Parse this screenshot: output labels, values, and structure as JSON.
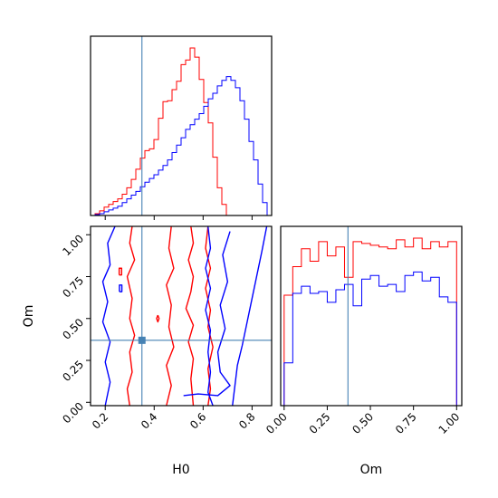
{
  "colors": {
    "series_a": "#ff0000",
    "series_b": "#0000ff",
    "truth": "#4682b4"
  },
  "chart_data": {
    "type": "corner",
    "parameters": [
      "H0",
      "Om"
    ],
    "truth": {
      "H0": 0.35,
      "Om": 0.37
    },
    "panels": [
      {
        "id": "hist-H0",
        "type": "histogram",
        "xlabel": "",
        "xlim": [
          0.14,
          0.88
        ],
        "bin_edges": [
          0.14,
          0.1585,
          0.177,
          0.1955,
          0.214,
          0.2325,
          0.251,
          0.2695,
          0.288,
          0.3065,
          0.325,
          0.3435,
          0.362,
          0.3805,
          0.399,
          0.4175,
          0.436,
          0.4545,
          0.473,
          0.4915,
          0.51,
          0.5285,
          0.547,
          0.5655,
          0.584,
          0.6025,
          0.621,
          0.6395,
          0.658,
          0.6765,
          0.695,
          0.7135,
          0.732,
          0.7505,
          0.769,
          0.7875,
          0.806,
          0.8245,
          0.843,
          0.8615,
          0.88
        ],
        "series": [
          {
            "color_key": "series_a",
            "counts": [
              0,
              2,
              5,
              9,
              12,
              15,
              18,
              23,
              30,
              39,
              50,
              62,
              70,
              72,
              82,
              105,
              123,
              124,
              136,
              145,
              163,
              168,
              181,
              171,
              147,
              122,
              100,
              63,
              30,
              12,
              0,
              0,
              0,
              0,
              0,
              0,
              0,
              0,
              0,
              0
            ]
          },
          {
            "color_key": "series_b",
            "counts": [
              0,
              1,
              2,
              4,
              6,
              8,
              10,
              14,
              18,
              22,
              26,
              31,
              36,
              40,
              44,
              49,
              54,
              60,
              68,
              76,
              84,
              93,
              98,
              104,
              110,
              118,
              126,
              132,
              140,
              146,
              150,
              146,
              138,
              124,
              104,
              80,
              60,
              34,
              14,
              0
            ]
          }
        ]
      },
      {
        "id": "scatter-H0-Om",
        "type": "contour",
        "xlabel": "H0",
        "ylabel": "Om",
        "xlim": [
          0.14,
          0.88
        ],
        "ylim": [
          -0.02,
          1.05
        ],
        "xticks": [
          0.2,
          0.4,
          0.6,
          0.8
        ],
        "xtick_labels": [
          "0.2",
          "0.4",
          "0.6",
          "0.8"
        ],
        "yticks": [
          0.0,
          0.25,
          0.5,
          0.75,
          1.0
        ],
        "ytick_labels": [
          "0.00",
          "0.25",
          "0.50",
          "0.75",
          "1.00"
        ],
        "series": [
          {
            "color_key": "series_a",
            "contours": [
              [
                [
                  0.31,
                  1.05
                ],
                [
                  0.3,
                  0.95
                ],
                [
                  0.32,
                  0.85
                ],
                [
                  0.29,
                  0.75
                ],
                [
                  0.31,
                  0.62
                ],
                [
                  0.3,
                  0.5
                ],
                [
                  0.32,
                  0.4
                ],
                [
                  0.3,
                  0.3
                ],
                [
                  0.31,
                  0.18
                ],
                [
                  0.29,
                  0.08
                ],
                [
                  0.3,
                  -0.02
                ]
              ],
              [
                [
                  0.47,
                  1.05
                ],
                [
                  0.46,
                  0.92
                ],
                [
                  0.48,
                  0.8
                ],
                [
                  0.45,
                  0.7
                ],
                [
                  0.47,
                  0.58
                ],
                [
                  0.46,
                  0.45
                ],
                [
                  0.48,
                  0.33
                ],
                [
                  0.45,
                  0.22
                ],
                [
                  0.47,
                  0.1
                ],
                [
                  0.45,
                  -0.02
                ]
              ],
              [
                [
                  0.55,
                  1.05
                ],
                [
                  0.56,
                  0.95
                ],
                [
                  0.54,
                  0.85
                ],
                [
                  0.56,
                  0.75
                ],
                [
                  0.55,
                  0.66
                ],
                [
                  0.53,
                  0.56
                ],
                [
                  0.56,
                  0.46
                ],
                [
                  0.54,
                  0.36
                ],
                [
                  0.56,
                  0.26
                ],
                [
                  0.55,
                  0.14
                ],
                [
                  0.56,
                  -0.02
                ]
              ],
              [
                [
                  0.62,
                  1.05
                ],
                [
                  0.61,
                  0.92
                ],
                [
                  0.63,
                  0.8
                ],
                [
                  0.61,
                  0.68
                ],
                [
                  0.63,
                  0.55
                ],
                [
                  0.62,
                  0.45
                ],
                [
                  0.64,
                  0.33
                ],
                [
                  0.62,
                  0.2
                ],
                [
                  0.63,
                  0.08
                ],
                [
                  0.62,
                  -0.02
                ]
              ],
              [
                [
                  0.257,
                  0.76
                ],
                [
                  0.267,
                  0.76
                ],
                [
                  0.267,
                  0.8
                ],
                [
                  0.257,
                  0.8
                ],
                [
                  0.257,
                  0.76
                ]
              ],
              [
                [
                  0.415,
                  0.52
                ],
                [
                  0.42,
                  0.5
                ],
                [
                  0.415,
                  0.48
                ],
                [
                  0.41,
                  0.5
                ],
                [
                  0.415,
                  0.52
                ]
              ]
            ]
          },
          {
            "color_key": "series_b",
            "contours": [
              [
                [
                  0.24,
                  1.05
                ],
                [
                  0.21,
                  0.95
                ],
                [
                  0.22,
                  0.82
                ],
                [
                  0.19,
                  0.72
                ],
                [
                  0.21,
                  0.6
                ],
                [
                  0.19,
                  0.48
                ],
                [
                  0.22,
                  0.36
                ],
                [
                  0.2,
                  0.24
                ],
                [
                  0.22,
                  0.12
                ],
                [
                  0.2,
                  -0.02
                ]
              ],
              [
                [
                  0.62,
                  1.05
                ],
                [
                  0.63,
                  0.92
                ],
                [
                  0.61,
                  0.8
                ],
                [
                  0.63,
                  0.68
                ],
                [
                  0.61,
                  0.55
                ],
                [
                  0.63,
                  0.43
                ],
                [
                  0.62,
                  0.3
                ],
                [
                  0.63,
                  0.18
                ],
                [
                  0.62,
                  0.06
                ],
                [
                  0.64,
                  -0.02
                ]
              ],
              [
                [
                  0.71,
                  1.02
                ],
                [
                  0.68,
                  0.88
                ],
                [
                  0.7,
                  0.72
                ],
                [
                  0.67,
                  0.58
                ],
                [
                  0.69,
                  0.44
                ],
                [
                  0.66,
                  0.3
                ],
                [
                  0.67,
                  0.18
                ],
                [
                  0.71,
                  0.1
                ],
                [
                  0.66,
                  0.04
                ],
                [
                  0.58,
                  0.05
                ],
                [
                  0.52,
                  0.04
                ]
              ],
              [
                [
                  0.86,
                  1.05
                ],
                [
                  0.84,
                  0.9
                ],
                [
                  0.82,
                  0.76
                ],
                [
                  0.8,
                  0.62
                ],
                [
                  0.78,
                  0.48
                ],
                [
                  0.76,
                  0.34
                ],
                [
                  0.74,
                  0.22
                ],
                [
                  0.73,
                  0.1
                ],
                [
                  0.72,
                  -0.02
                ]
              ],
              [
                [
                  0.258,
                  0.66
                ],
                [
                  0.268,
                  0.66
                ],
                [
                  0.268,
                  0.7
                ],
                [
                  0.258,
                  0.7
                ],
                [
                  0.258,
                  0.66
                ]
              ]
            ]
          }
        ]
      },
      {
        "id": "hist-Om",
        "type": "histogram",
        "xlabel": "Om",
        "xlim": [
          -0.02,
          1.03
        ],
        "xticks": [
          0.0,
          0.25,
          0.5,
          0.75,
          1.0
        ],
        "xtick_labels": [
          "0.00",
          "0.25",
          "0.50",
          "0.75",
          "1.00"
        ],
        "bin_edges": [
          0.0,
          0.05,
          0.1,
          0.15,
          0.2,
          0.25,
          0.3,
          0.35,
          0.4,
          0.45,
          0.5,
          0.55,
          0.6,
          0.65,
          0.7,
          0.75,
          0.8,
          0.85,
          0.9,
          0.95,
          1.0
        ],
        "series": [
          {
            "color_key": "series_a",
            "counts": [
              62,
              78,
              88,
              81,
              92,
              84,
              89,
              72,
              92,
              91,
              90,
              89,
              88,
              93,
              89,
              94,
              88,
              92,
              89,
              92
            ]
          },
          {
            "color_key": "series_b",
            "counts": [
              24,
              63,
              67,
              63,
              64,
              58,
              65,
              68,
              56,
              71,
              73,
              67,
              68,
              64,
              73,
              75,
              70,
              72,
              61,
              58
            ]
          }
        ]
      }
    ]
  }
}
